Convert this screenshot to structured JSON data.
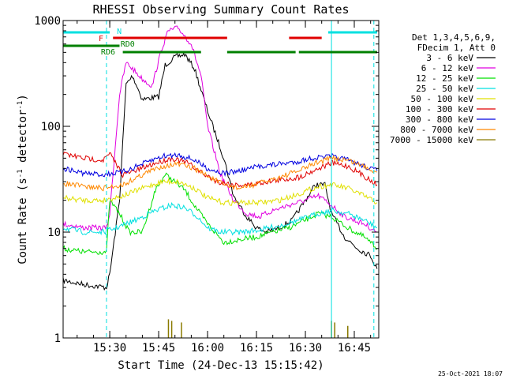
{
  "chart_data": {
    "type": "line",
    "title": "RHESSI Observing Summary Count Rates",
    "xlabel": "Start Time (24-Dec-13 15:15:42)",
    "ylabel": "Count Rate (s⁻¹ detector⁻¹)",
    "ylabel_parts": {
      "main": "Count Rate (s",
      "exp1": "-1",
      "mid": " detector",
      "exp2": "-1",
      "end": ")"
    },
    "yscale": "log",
    "ylim": [
      1,
      1000
    ],
    "xlim": [
      "15:15:42",
      "16:52:30"
    ],
    "x_ticks": [
      "15:30",
      "15:45",
      "16:00",
      "16:15",
      "16:30",
      "16:45"
    ],
    "y_ticks": [
      "1",
      "10",
      "100",
      "1000"
    ],
    "grid": false,
    "legend_position": "right",
    "legend_header": [
      "Det 1,3,4,5,6,9,",
      "FDecim 1, Att 0"
    ],
    "footer": "25-Oct-2021 18:07",
    "series": [
      {
        "name": "3 - 6 keV",
        "color": "#000000",
        "points": [
          [
            "15:15:42",
            3.5
          ],
          [
            "15:22",
            3.2
          ],
          [
            "15:29",
            3
          ],
          [
            "15:30",
            4
          ],
          [
            "15:33",
            20
          ],
          [
            "15:35",
            250
          ],
          [
            "15:37",
            300
          ],
          [
            "15:40",
            180
          ],
          [
            "15:45",
            190
          ],
          [
            "15:47",
            380
          ],
          [
            "15:50",
            450
          ],
          [
            "15:53",
            480
          ],
          [
            "15:56",
            350
          ],
          [
            "16:00",
            140
          ],
          [
            "16:05",
            50
          ],
          [
            "16:08",
            22
          ],
          [
            "16:12",
            14
          ],
          [
            "16:15",
            11
          ],
          [
            "16:18",
            10
          ],
          [
            "16:22",
            11
          ],
          [
            "16:26",
            13
          ],
          [
            "16:30",
            20
          ],
          [
            "16:33",
            28
          ],
          [
            "16:36",
            28
          ],
          [
            "16:38",
            15
          ],
          [
            "16:42",
            9
          ],
          [
            "16:46",
            7
          ],
          [
            "16:50",
            6
          ],
          [
            "16:52",
            4.5
          ]
        ]
      },
      {
        "name": "6 - 12 keV",
        "color": "#e000e0",
        "points": [
          [
            "15:15:42",
            12
          ],
          [
            "15:22",
            11
          ],
          [
            "15:29",
            11
          ],
          [
            "15:30",
            15
          ],
          [
            "15:33",
            200
          ],
          [
            "15:35",
            400
          ],
          [
            "15:37",
            350
          ],
          [
            "15:40",
            280
          ],
          [
            "15:43",
            240
          ],
          [
            "15:46",
            550
          ],
          [
            "15:48",
            800
          ],
          [
            "15:51",
            850
          ],
          [
            "15:55",
            600
          ],
          [
            "15:58",
            300
          ],
          [
            "16:00",
            100
          ],
          [
            "16:04",
            35
          ],
          [
            "16:08",
            20
          ],
          [
            "16:12",
            15
          ],
          [
            "16:16",
            14
          ],
          [
            "16:20",
            16
          ],
          [
            "16:25",
            18
          ],
          [
            "16:30",
            20
          ],
          [
            "16:34",
            22
          ],
          [
            "16:38",
            18
          ],
          [
            "16:42",
            14
          ],
          [
            "16:48",
            12
          ],
          [
            "16:52",
            10
          ]
        ]
      },
      {
        "name": "12 - 25 keV",
        "color": "#00e000",
        "points": [
          [
            "15:15:42",
            7
          ],
          [
            "15:22",
            6.5
          ],
          [
            "15:29",
            6.5
          ],
          [
            "15:30",
            20
          ],
          [
            "15:33",
            15
          ],
          [
            "15:36",
            10
          ],
          [
            "15:40",
            10
          ],
          [
            "15:44",
            25
          ],
          [
            "15:47",
            35
          ],
          [
            "15:50",
            30
          ],
          [
            "15:53",
            25
          ],
          [
            "15:57",
            16
          ],
          [
            "16:00",
            12
          ],
          [
            "16:05",
            8
          ],
          [
            "16:10",
            8.5
          ],
          [
            "16:15",
            9
          ],
          [
            "16:20",
            10
          ],
          [
            "16:25",
            11
          ],
          [
            "16:30",
            13
          ],
          [
            "16:34",
            15
          ],
          [
            "16:38",
            14
          ],
          [
            "16:43",
            11
          ],
          [
            "16:48",
            9
          ],
          [
            "16:52",
            7
          ]
        ]
      },
      {
        "name": "25 - 50 keV",
        "color": "#00e0e0",
        "points": [
          [
            "15:15:42",
            11
          ],
          [
            "15:22",
            10
          ],
          [
            "15:28",
            10
          ],
          [
            "15:32",
            11
          ],
          [
            "15:38",
            13
          ],
          [
            "15:44",
            16
          ],
          [
            "15:49",
            18
          ],
          [
            "15:53",
            17
          ],
          [
            "15:57",
            14
          ],
          [
            "16:00",
            11
          ],
          [
            "16:04",
            10
          ],
          [
            "16:10",
            10
          ],
          [
            "16:16",
            10.5
          ],
          [
            "16:22",
            11.5
          ],
          [
            "16:28",
            13
          ],
          [
            "16:34",
            15
          ],
          [
            "16:38",
            16
          ],
          [
            "16:43",
            15
          ],
          [
            "16:48",
            13
          ],
          [
            "16:52",
            11
          ]
        ]
      },
      {
        "name": "50 - 100 keV",
        "color": "#e0e000",
        "points": [
          [
            "15:15:42",
            21
          ],
          [
            "15:22",
            20
          ],
          [
            "15:28",
            20
          ],
          [
            "15:34",
            22
          ],
          [
            "15:40",
            26
          ],
          [
            "15:46",
            30
          ],
          [
            "15:51",
            30
          ],
          [
            "15:56",
            26
          ],
          [
            "16:00",
            21
          ],
          [
            "16:05",
            19
          ],
          [
            "16:10",
            19
          ],
          [
            "16:16",
            19
          ],
          [
            "16:22",
            20
          ],
          [
            "16:28",
            23
          ],
          [
            "16:34",
            27
          ],
          [
            "16:38",
            28
          ],
          [
            "16:43",
            26
          ],
          [
            "16:48",
            22
          ],
          [
            "16:52",
            19
          ]
        ]
      },
      {
        "name": "100 - 300 keV",
        "color": "#e00000",
        "points": [
          [
            "15:15:42",
            55
          ],
          [
            "15:22",
            50
          ],
          [
            "15:28",
            48
          ],
          [
            "15:30",
            55
          ],
          [
            "15:34",
            35
          ],
          [
            "15:38",
            38
          ],
          [
            "15:44",
            45
          ],
          [
            "15:49",
            50
          ],
          [
            "15:54",
            45
          ],
          [
            "15:59",
            35
          ],
          [
            "16:03",
            30
          ],
          [
            "16:08",
            28
          ],
          [
            "16:13",
            28
          ],
          [
            "16:18",
            30
          ],
          [
            "16:22",
            31
          ],
          [
            "16:28",
            33
          ],
          [
            "16:34",
            40
          ],
          [
            "16:38",
            45
          ],
          [
            "16:43",
            42
          ],
          [
            "16:48",
            34
          ],
          [
            "16:52",
            28
          ]
        ]
      },
      {
        "name": "300 - 800 keV",
        "color": "#0000e0",
        "points": [
          [
            "15:15:42",
            40
          ],
          [
            "15:22",
            36
          ],
          [
            "15:28",
            35
          ],
          [
            "15:34",
            37
          ],
          [
            "15:40",
            44
          ],
          [
            "15:46",
            52
          ],
          [
            "15:51",
            54
          ],
          [
            "15:56",
            48
          ],
          [
            "16:00",
            40
          ],
          [
            "16:05",
            36
          ],
          [
            "16:10",
            38
          ],
          [
            "16:16",
            42
          ],
          [
            "16:22",
            44
          ],
          [
            "16:27",
            46
          ],
          [
            "16:32",
            50
          ],
          [
            "16:38",
            52
          ],
          [
            "16:43",
            48
          ],
          [
            "16:48",
            42
          ],
          [
            "16:52",
            38
          ]
        ]
      },
      {
        "name": "800 - 7000 keV",
        "color": "#ff8800",
        "points": [
          [
            "15:15:42",
            29
          ],
          [
            "15:22",
            27
          ],
          [
            "15:28",
            26
          ],
          [
            "15:34",
            28
          ],
          [
            "15:40",
            35
          ],
          [
            "15:46",
            42
          ],
          [
            "15:51",
            44
          ],
          [
            "15:56",
            40
          ],
          [
            "16:00",
            34
          ],
          [
            "16:05",
            28
          ],
          [
            "16:10",
            26
          ],
          [
            "16:16",
            29
          ],
          [
            "16:22",
            33
          ],
          [
            "16:28",
            38
          ],
          [
            "16:33",
            45
          ],
          [
            "16:38",
            50
          ],
          [
            "16:43",
            48
          ],
          [
            "16:48",
            42
          ],
          [
            "16:52",
            37
          ]
        ]
      },
      {
        "name": "7000 - 15000 keV",
        "color": "#8a7a00",
        "points": []
      }
    ],
    "flags": [
      {
        "label": "N",
        "color": "#00e0e0",
        "label_at": "15:30",
        "segments": [
          [
            "15:15:42",
            "15:30"
          ],
          [
            "16:37",
            "16:52"
          ]
        ]
      },
      {
        "label": "F",
        "color": "#e00000",
        "label_at": "15:29",
        "segments": [
          [
            "15:31",
            "16:06"
          ],
          [
            "16:25",
            "16:35"
          ]
        ]
      },
      {
        "label": "RD0",
        "color": "#008000",
        "label_at": "15:35",
        "segments": [
          [
            "15:15:42",
            "15:33"
          ]
        ]
      },
      {
        "label": "RD6",
        "color": "#008000",
        "label_at": "15:29",
        "segments": [
          [
            "15:34",
            "15:58"
          ],
          [
            "16:06",
            "16:27"
          ],
          [
            "16:28",
            "16:52"
          ]
        ]
      }
    ],
    "vlines": [
      {
        "time": "15:15:42",
        "style": "solid",
        "color": "#00e0e0"
      },
      {
        "time": "15:29",
        "style": "dashed",
        "color": "#00e0e0"
      },
      {
        "time": "16:38",
        "style": "solid",
        "color": "#00e0e0"
      },
      {
        "time": "16:51",
        "style": "dashed",
        "color": "#00e0e0"
      }
    ],
    "spikes": [
      {
        "time": "15:48",
        "height": 1.5
      },
      {
        "time": "15:49",
        "height": 1.45
      },
      {
        "time": "15:52",
        "height": 1.4
      },
      {
        "time": "16:38",
        "height": 1.45
      },
      {
        "time": "16:39",
        "height": 1.4
      },
      {
        "time": "16:43",
        "height": 1.3
      }
    ]
  }
}
